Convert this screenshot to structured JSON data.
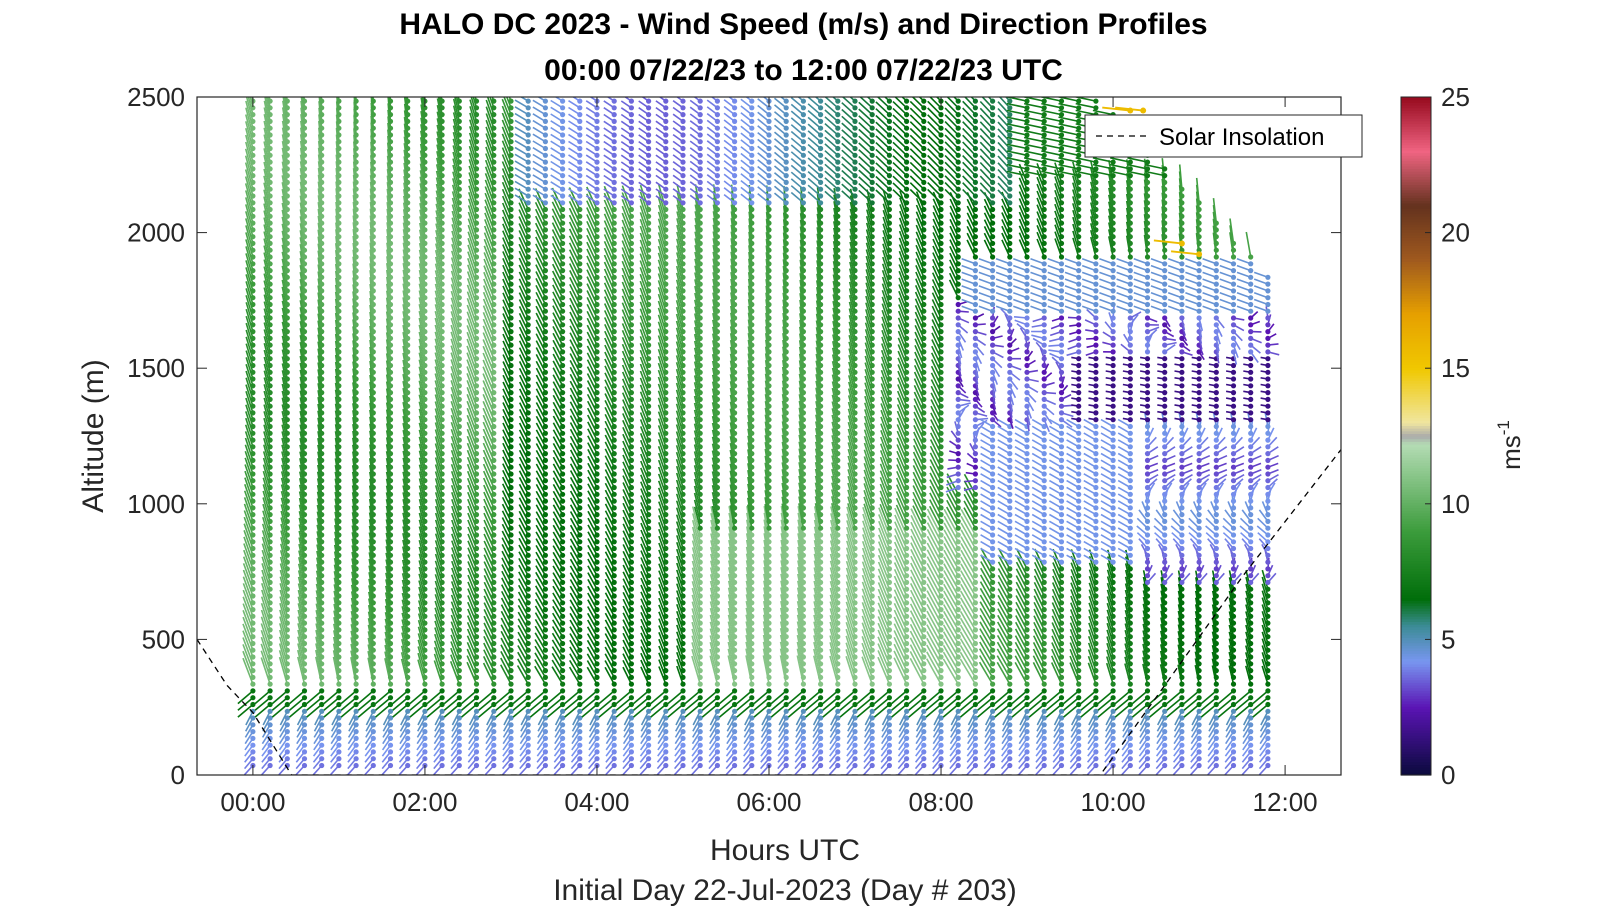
{
  "chart_data": {
    "type": "wind-barb-profile",
    "title": "HALO DC 2023 - Wind Speed (m/s) and Direction Profiles",
    "subtitle": "00:00 07/22/23 to 12:00 07/22/23  UTC",
    "xlabel": "Hours UTC",
    "footer": "Initial Day 22-Jul-2023 (Day # 203)",
    "ylabel": "Altitude (m)",
    "xlim_hours": [
      -0.65,
      12.65
    ],
    "ylim_m": [
      0,
      2500
    ],
    "x_ticks": [
      {
        "hour": 0,
        "label": "00:00"
      },
      {
        "hour": 2,
        "label": "02:00"
      },
      {
        "hour": 4,
        "label": "04:00"
      },
      {
        "hour": 6,
        "label": "06:00"
      },
      {
        "hour": 8,
        "label": "08:00"
      },
      {
        "hour": 10,
        "label": "10:00"
      },
      {
        "hour": 12,
        "label": "12:00"
      }
    ],
    "y_ticks": [
      {
        "value": 0,
        "label": "0"
      },
      {
        "value": 500,
        "label": "500"
      },
      {
        "value": 1000,
        "label": "1000"
      },
      {
        "value": 1500,
        "label": "1500"
      },
      {
        "value": 2000,
        "label": "2000"
      },
      {
        "value": 2500,
        "label": "2500"
      }
    ],
    "legend": {
      "label": "Solar Insolation",
      "placement": "top-right",
      "style": "dashed black line"
    },
    "colorbar": {
      "label_base": "ms",
      "label_exp": "-1",
      "range": [
        0,
        25
      ],
      "ticks": [
        {
          "value": 0,
          "label": "0"
        },
        {
          "value": 5,
          "label": "5"
        },
        {
          "value": 10,
          "label": "10"
        },
        {
          "value": 15,
          "label": "15"
        },
        {
          "value": 20,
          "label": "20"
        },
        {
          "value": 25,
          "label": "25"
        }
      ],
      "stops": [
        {
          "v": 0,
          "c": "#0a0a3c"
        },
        {
          "v": 2.5,
          "c": "#5a14b4"
        },
        {
          "v": 4.2,
          "c": "#7896f0"
        },
        {
          "v": 5.5,
          "c": "#3c8c96"
        },
        {
          "v": 6.5,
          "c": "#006e0a"
        },
        {
          "v": 9,
          "c": "#3c9c3c"
        },
        {
          "v": 12.2,
          "c": "#b4dcb4"
        },
        {
          "v": 12.5,
          "c": "#aaaaaa"
        },
        {
          "v": 13,
          "c": "#f0e6a0"
        },
        {
          "v": 15,
          "c": "#f0c800"
        },
        {
          "v": 17,
          "c": "#e6a000"
        },
        {
          "v": 19,
          "c": "#a05a1e"
        },
        {
          "v": 21,
          "c": "#64321e"
        },
        {
          "v": 23,
          "c": "#f06482"
        },
        {
          "v": 25,
          "c": "#960a1e"
        }
      ]
    },
    "solar_insolation": {
      "description": "dashed curve, scaled to altitude axis",
      "points": [
        [
          -0.65,
          500
        ],
        [
          -0.3,
          330
        ],
        [
          0.0,
          230
        ],
        [
          0.45,
          0
        ],
        [
          9.85,
          0
        ],
        [
          10.6,
          330
        ],
        [
          11.5,
          730
        ],
        [
          12.65,
          1200
        ]
      ]
    },
    "profiles": {
      "time_step_hours": 0.2,
      "first_hour": 0.0,
      "last_hour": 11.8,
      "altitude_step_m": 25,
      "lowest_altitude_m": 35,
      "top_altitude_m": 2500,
      "note": "Wind barbs: segment oriented to wind direction, length proportional to speed, colored by speed (m/s). Top of data profile descends from 2500 m before 10:00 to about 1850 m near 11:48."
    },
    "wind_field_regimes": [
      {
        "region": "below 250 m, all times",
        "speed_ms": "2-5",
        "direction": "north-westerly, near surface"
      },
      {
        "region": "250-2500 m, 00:00-06:00",
        "speed_ms": "7-11",
        "direction": "southerly to south-westerly"
      },
      {
        "region": "2100-2500 m, 03:00-09:00",
        "speed_ms": "4-7",
        "direction": "westerly"
      },
      {
        "region": "1100-1700 m, 08:00-12:00",
        "speed_ms": "1-4",
        "direction": "variable"
      },
      {
        "region": "800-1300 m, 08:30-12:00",
        "speed_ms": "4-5",
        "direction": "south-westerly"
      },
      {
        "region": "around 1950 m, 10:48-11:24",
        "speed_ms": "15-16",
        "direction": "westerly"
      },
      {
        "region": "around 2450 m, 10:12-10:24",
        "speed_ms": "15-16",
        "direction": "westerly"
      }
    ]
  }
}
